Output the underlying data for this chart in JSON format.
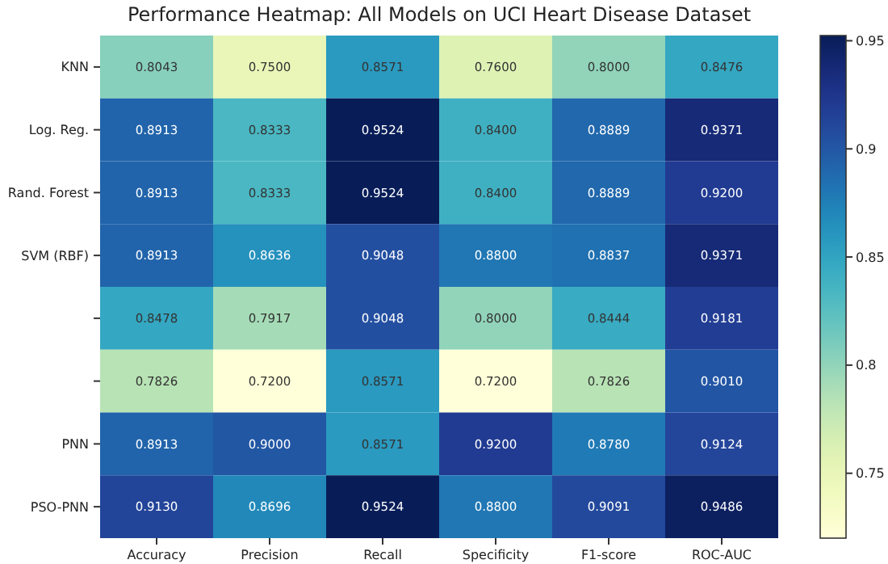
{
  "chart_data": {
    "type": "heatmap",
    "title": "Performance Heatmap: All Models on UCI Heart Disease Dataset",
    "categories": [
      "Accuracy",
      "Precision",
      "Recall",
      "Specificity",
      "F1-score",
      "ROC-AUC"
    ],
    "y_categories": [
      "KNN",
      "Log. Reg.",
      "Rand. Forest",
      "SVM (RBF)",
      null,
      null,
      "PNN",
      "PSO-PNN"
    ],
    "cells": [
      [
        0.8043,
        0.75,
        0.8571,
        0.76,
        0.8,
        0.8476
      ],
      [
        0.8913,
        0.8333,
        0.9524,
        0.84,
        0.8889,
        0.9371
      ],
      [
        0.8913,
        0.8333,
        0.9524,
        0.84,
        0.8889,
        0.92
      ],
      [
        0.8913,
        0.8636,
        0.9048,
        0.88,
        0.8837,
        0.9371
      ],
      [
        0.8478,
        0.7917,
        0.9048,
        0.8,
        0.8444,
        0.9181
      ],
      [
        0.7826,
        0.72,
        0.8571,
        0.72,
        0.7826,
        0.901
      ],
      [
        0.8913,
        0.9,
        0.8571,
        0.92,
        0.878,
        0.9124
      ],
      [
        0.913,
        0.8696,
        0.9524,
        0.88,
        0.9091,
        0.9486
      ]
    ],
    "cell_labels": [
      [
        "0.8043",
        "0.7500",
        "0.8571",
        "0.7600",
        "0.8000",
        "0.8476"
      ],
      [
        "0.8913",
        "0.8333",
        "0.9524",
        "0.8400",
        "0.8889",
        "0.9371"
      ],
      [
        "0.8913",
        "0.8333",
        "0.9524",
        "0.8400",
        "0.8889",
        "0.9200"
      ],
      [
        "0.8913",
        "0.8636",
        "0.9048",
        "0.8800",
        "0.8837",
        "0.9371"
      ],
      [
        "0.8478",
        "0.7917",
        "0.9048",
        "0.8000",
        "0.8444",
        "0.9181"
      ],
      [
        "0.7826",
        "0.7200",
        "0.8571",
        "0.7200",
        "0.7826",
        "0.9010"
      ],
      [
        "0.8913",
        "0.9000",
        "0.8571",
        "0.9200",
        "0.8780",
        "0.9124"
      ],
      [
        "0.9130",
        "0.8696",
        "0.9524",
        "0.8800",
        "0.9091",
        "0.9486"
      ]
    ],
    "clim": [
      0.72,
      0.9524
    ],
    "cticks": [
      0.75,
      0.8,
      0.85,
      0.9,
      0.95
    ]
  }
}
